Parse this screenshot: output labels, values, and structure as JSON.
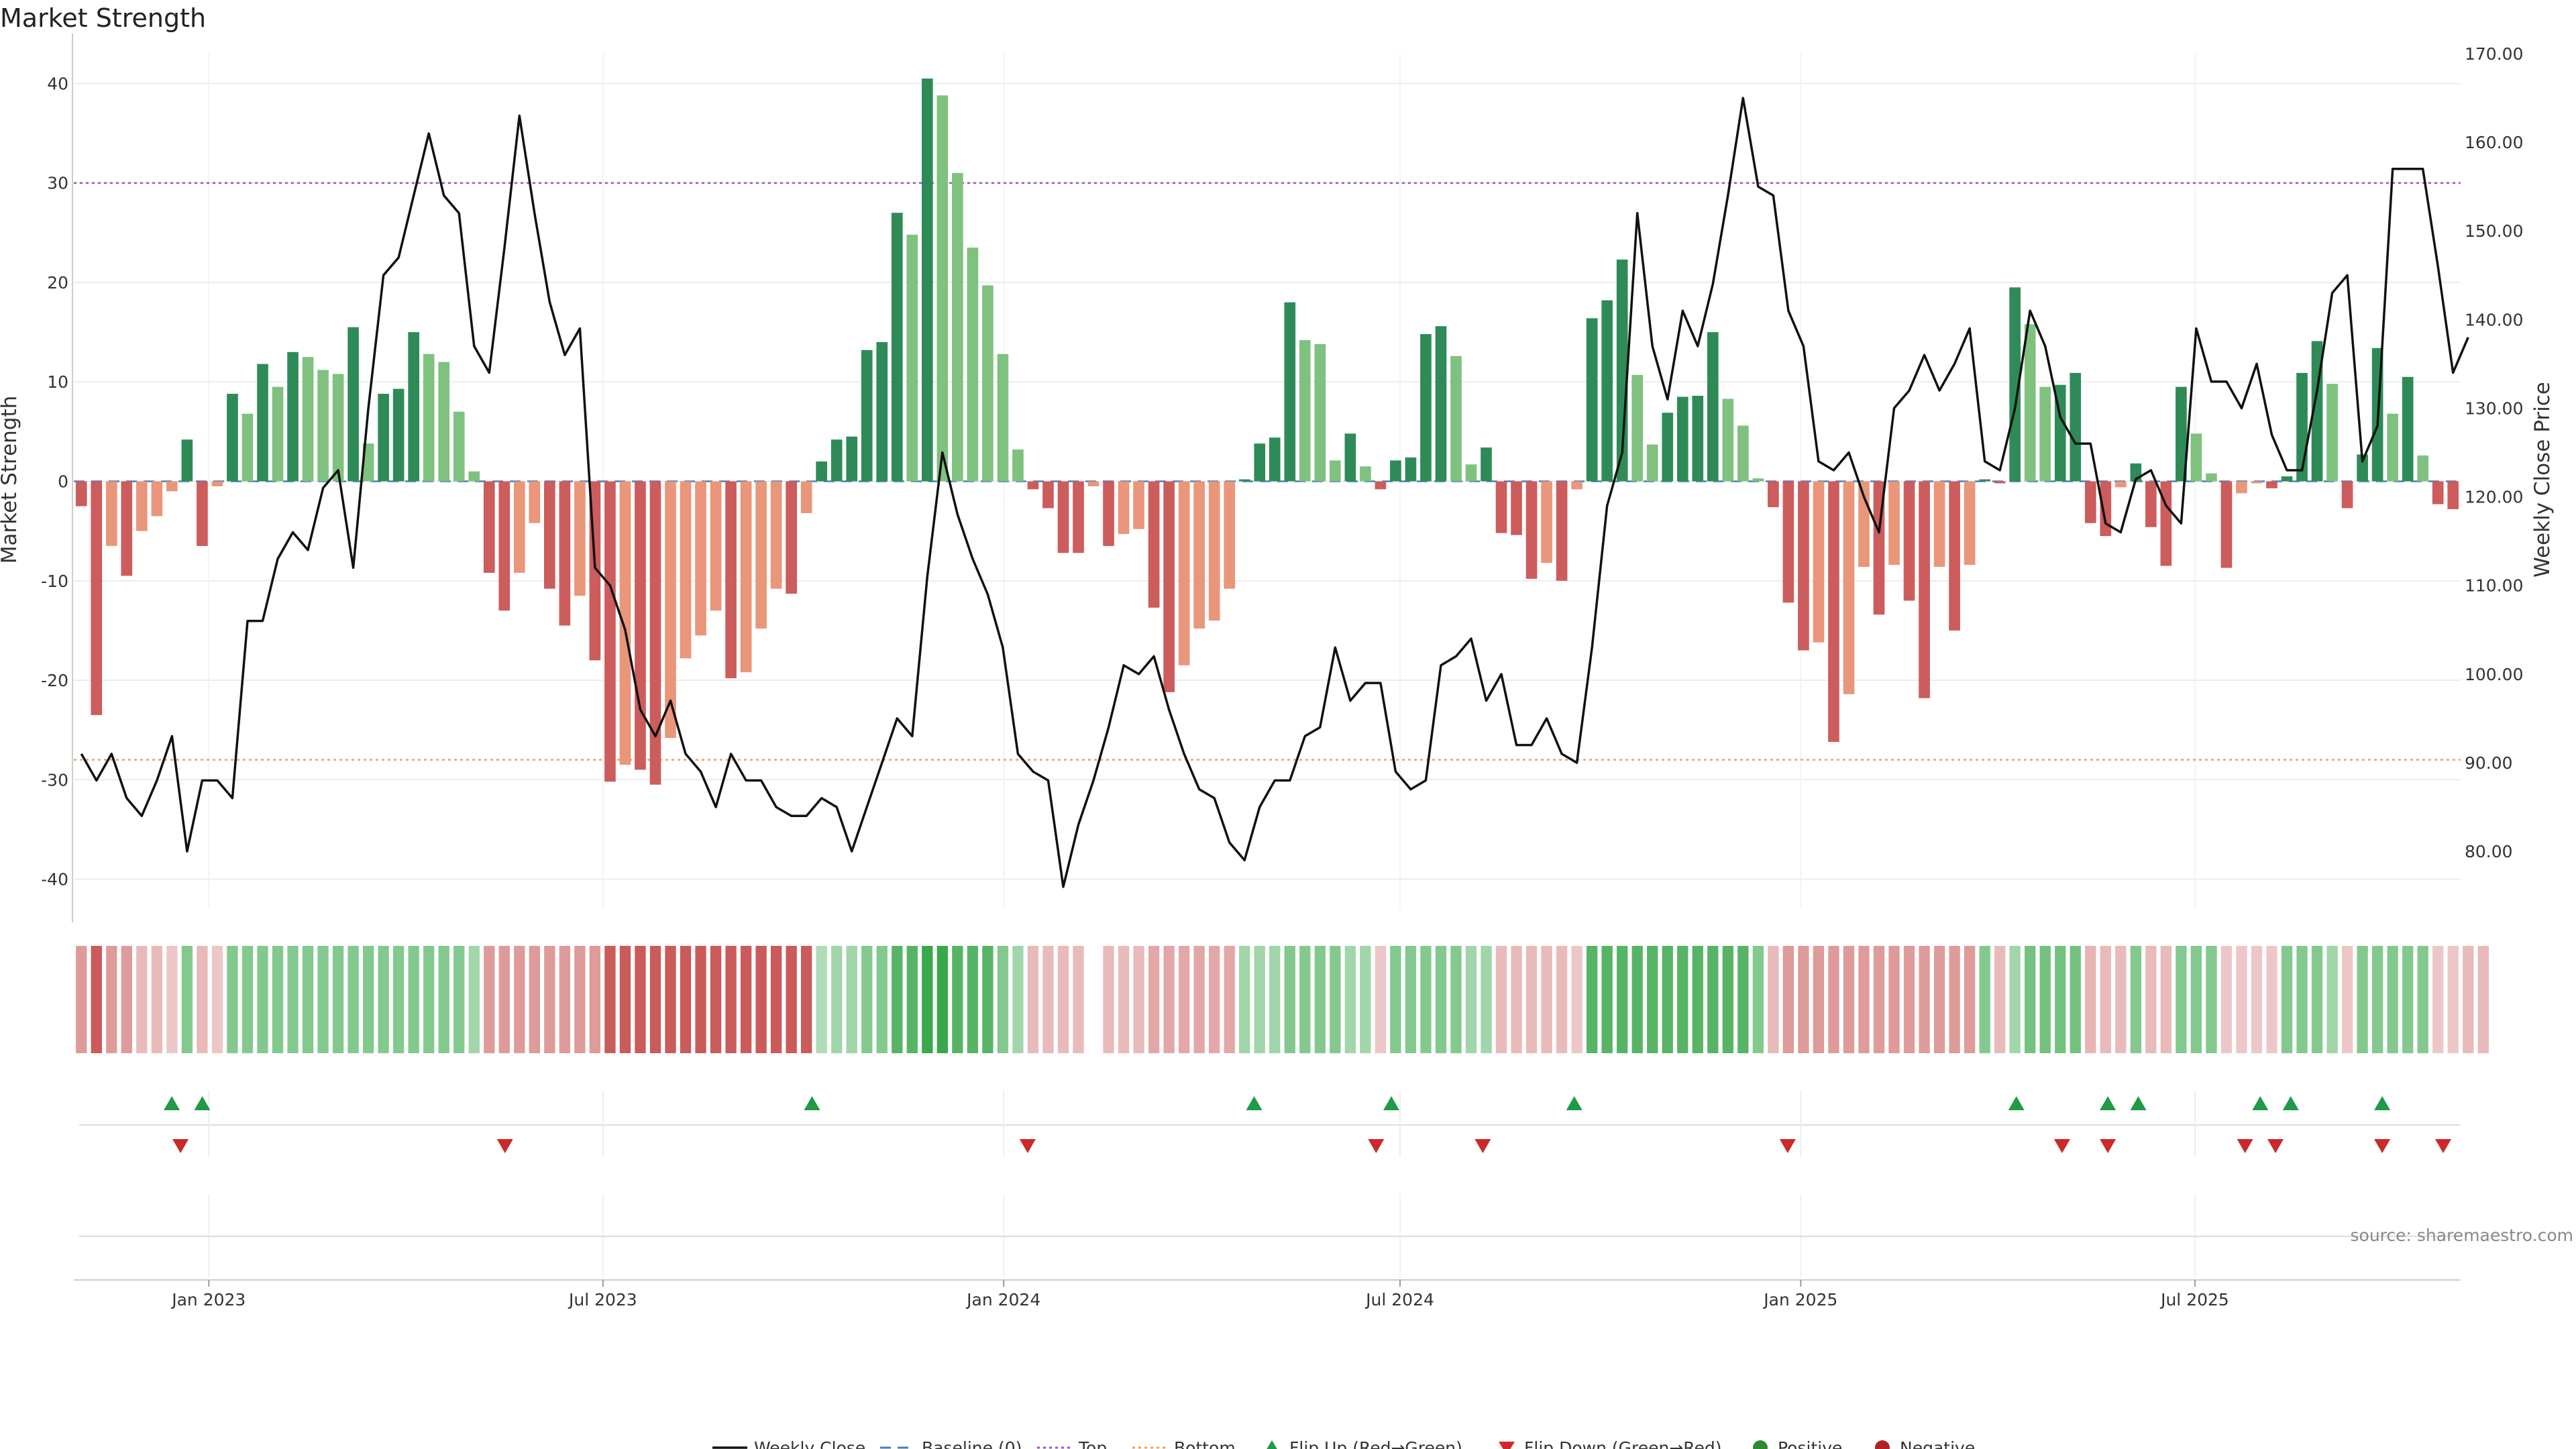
{
  "chart_data": {
    "type": "bar",
    "title": "Market Strength",
    "ylabel": "Market Strength",
    "y2label": "Weekly Close Price",
    "ylim": [
      -43,
      43
    ],
    "y2lim": [
      73.5,
      170
    ],
    "yticks": [
      40,
      30,
      20,
      10,
      0,
      -10,
      -20,
      -30,
      -40
    ],
    "y2ticks": [
      "170.00",
      "160.00",
      "150.00",
      "140.00",
      "130.00",
      "120.00",
      "110.00",
      "100.00",
      "90.00",
      "80.00"
    ],
    "top_line": 30,
    "bottom_line": -28,
    "x_start": "2022-10-31",
    "x_end": "2025-10-31",
    "xticks": [
      {
        "date": "2023-01-01",
        "label": "Jan 2023"
      },
      {
        "date": "2023-07-01",
        "label": "Jul 2023"
      },
      {
        "date": "2024-01-01",
        "label": "Jan 2024"
      },
      {
        "date": "2024-07-01",
        "label": "Jul 2024"
      },
      {
        "date": "2025-01-01",
        "label": "Jan 2025"
      },
      {
        "date": "2025-07-01",
        "label": "Jul 2025"
      }
    ],
    "strength": [
      -2.5,
      -23.5,
      -6.5,
      -9.5,
      -5,
      -3.5,
      -1,
      4.2,
      -6.5,
      -0.5,
      8.8,
      6.8,
      11.8,
      9.5,
      13,
      12.5,
      11.2,
      10.8,
      15.5,
      3.8,
      8.8,
      9.3,
      15,
      12.8,
      12,
      7,
      1,
      -9.2,
      -13,
      -9.2,
      -4.2,
      -10.8,
      -14.5,
      -11.5,
      -18,
      -30.2,
      -28.5,
      -29,
      -30.5,
      -25.8,
      -17.8,
      -15.5,
      -13,
      -19.8,
      -19.2,
      -14.8,
      -10.8,
      -11.3,
      -3.2,
      2,
      4.2,
      4.5,
      13.2,
      14,
      27,
      24.8,
      40.5,
      38.8,
      31,
      23.5,
      19.7,
      12.8,
      3.2,
      -0.8,
      -2.7,
      -7.2,
      -7.2,
      -0.5,
      -6.5,
      -5.3,
      -4.8,
      -12.7,
      -21.2,
      -18.5,
      -14.8,
      -14,
      -10.8,
      0.2,
      3.8,
      4.4,
      18,
      14.2,
      13.8,
      2.1,
      4.8,
      1.5,
      -0.8,
      2.1,
      2.4,
      14.8,
      15.6,
      12.6,
      1.7,
      3.4,
      -5.2,
      -5.4,
      -9.8,
      -8.2,
      -10,
      -0.8,
      16.4,
      18.2,
      22.3,
      10.7,
      3.7,
      6.9,
      8.5,
      8.6,
      15,
      8.3,
      5.6,
      0.3,
      -2.6,
      -12.2,
      -17,
      -16.2,
      -26.2,
      -21.4,
      -8.6,
      -13.4,
      -8.4,
      -12,
      -21.8,
      -8.6,
      -15,
      -8.4,
      0.2,
      -0.2,
      19.5,
      15.8,
      9.5,
      9.7,
      10.9,
      -4.2,
      -5.5,
      -0.6,
      1.8,
      -4.6,
      -8.5,
      9.5,
      4.8,
      0.8,
      -8.7,
      -1.2,
      -0.2,
      -0.7,
      0.5,
      10.9,
      14.1,
      9.8,
      -2.7,
      2.7,
      13.4,
      6.8,
      10.5,
      2.6,
      -2.3,
      -2.8
    ],
    "price": [
      91,
      88,
      91,
      86,
      84,
      88,
      93,
      80,
      88,
      88,
      86,
      106,
      106,
      113,
      116,
      114,
      121,
      123,
      112,
      130,
      145,
      147,
      154,
      161,
      154,
      152,
      137,
      134,
      148,
      163,
      152,
      142,
      136,
      139,
      112,
      110,
      105,
      96,
      93,
      97,
      91,
      89,
      85,
      91,
      88,
      88,
      85,
      84,
      84,
      86,
      85,
      80,
      85,
      90,
      95,
      93,
      111,
      125,
      118,
      113,
      109,
      103,
      91,
      89,
      88,
      76,
      83,
      88,
      94,
      101,
      100,
      102,
      96,
      91,
      87,
      86,
      81,
      79,
      85,
      88,
      88,
      93,
      94,
      103,
      97,
      99,
      99,
      89,
      87,
      88,
      101,
      102,
      104,
      97,
      100,
      92,
      92,
      95,
      91,
      90,
      103,
      119,
      125,
      152,
      137,
      131,
      141,
      137,
      144,
      154,
      165,
      155,
      154,
      141,
      137,
      124,
      123,
      125,
      120,
      116,
      130,
      132,
      136,
      132,
      135,
      139,
      124,
      123,
      130,
      141,
      137,
      129,
      126,
      126,
      117,
      116,
      122,
      123,
      119,
      117,
      139,
      133,
      133,
      130,
      135,
      127,
      123,
      123,
      132,
      143,
      145,
      124,
      128,
      157,
      157,
      157,
      146,
      134,
      138
    ],
    "heat": [
      1,
      2,
      1,
      1,
      0.5,
      0.5,
      0.3,
      0.5,
      0.5,
      0.3,
      0.5,
      0.5,
      0.5,
      0.5,
      0.5,
      0.5,
      0.5,
      0.5,
      0.5,
      0.5,
      0.5,
      0.5,
      0.5,
      0.5,
      0.5,
      0.5,
      0.3,
      1,
      1,
      1,
      1,
      1,
      1,
      1,
      1,
      2,
      2,
      2,
      2,
      2,
      2,
      2,
      2,
      2,
      2,
      2,
      2,
      2,
      2,
      0.2,
      0.3,
      0.3,
      0.5,
      0.5,
      0.8,
      0.8,
      1,
      1,
      0.8,
      0.8,
      0.8,
      0.5,
      0.3,
      0.5,
      0.5,
      0.5,
      0.5,
      0,
      0.5,
      0.5,
      0.5,
      0.8,
      0.8,
      0.8,
      0.8,
      0.8,
      0.8,
      0.3,
      0.3,
      0.3,
      0.5,
      0.5,
      0.5,
      0.5,
      0.3,
      0.3,
      0.3,
      0.5,
      0.5,
      0.5,
      0.5,
      0.5,
      0.3,
      0.3,
      0.5,
      0.5,
      0.5,
      0.5,
      0.5,
      0.3,
      0.8,
      0.8,
      0.8,
      0.8,
      0.8,
      0.8,
      0.8,
      0.8,
      0.8,
      0.8,
      0.8,
      0.5,
      0.5,
      1,
      1,
      1,
      1,
      1,
      1,
      1,
      1,
      1,
      1,
      1,
      1,
      1,
      0.5,
      0.5,
      0.3,
      0.6,
      0.6,
      0.6,
      0.6,
      0.6,
      0.5,
      0.5,
      0.5,
      0.5,
      0.5,
      0.5,
      0.5,
      0.5,
      0.3,
      0.3,
      0.3,
      0.3,
      0.5,
      0.5,
      0.5,
      0.3,
      0.3,
      0.5,
      0.5,
      0.5,
      0.5,
      0.5,
      0.3,
      0.3,
      0.5,
      0.5
    ],
    "flips_up": [
      "2022-12-15",
      "2022-12-29",
      "2023-10-05",
      "2024-04-25",
      "2024-06-27",
      "2024-09-19",
      "2025-04-10",
      "2025-05-22",
      "2025-06-05",
      "2025-07-31",
      "2025-08-14",
      "2025-09-25"
    ],
    "flips_down": [
      "2022-12-19",
      "2023-05-17",
      "2024-01-12",
      "2024-06-20",
      "2024-08-08",
      "2024-12-26",
      "2025-05-01",
      "2025-05-22",
      "2025-07-24",
      "2025-08-07",
      "2025-09-25",
      "2025-10-23"
    ],
    "colors": {
      "pos_dark": "#2e8b57",
      "pos_light": "#7fc17f",
      "neg_dark": "#cd5c5c",
      "neg_light": "#e9967a",
      "flip_up": "#1f9a48",
      "flip_down": "#cc2929",
      "positive_dot": "#2e8b2e",
      "negative_dot": "#b22222",
      "top_line": "#9b59b6",
      "bottom_line": "#f0a05a",
      "baseline": "#4a7fb5"
    },
    "legend": [
      "Weekly Close",
      "Baseline (0)",
      "Top",
      "Bottom",
      "Flip Up (Red→Green)",
      "Flip Down (Green→Red)",
      "Positive",
      "Negative"
    ],
    "source": "source: sharemaestro.com"
  }
}
